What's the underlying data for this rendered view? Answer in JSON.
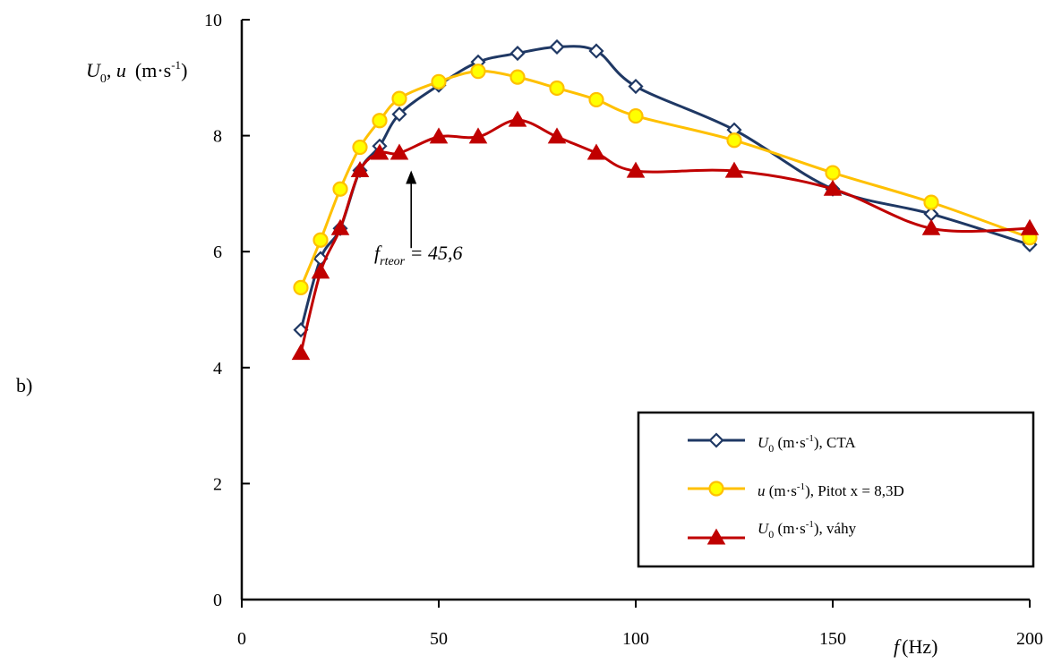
{
  "panel_label": "b)",
  "colors": {
    "cta": "#1f3864",
    "pitot_line": "#ffc000",
    "pitot_marker_fill": "#ffff00",
    "vahy": "#c00000",
    "axis": "#000000"
  },
  "ylabel": {
    "sym1": "U",
    "sub1": "0",
    "sep": ", ",
    "sym2": "u",
    "units_pre": "(m·s",
    "units_exp": "-1",
    "units_post": ")"
  },
  "xlabel": {
    "sym": "f",
    "units": "(Hz)"
  },
  "annotation": {
    "sym": "f",
    "sub": "rteor",
    "rest": " = 45,6",
    "x": 43,
    "y_tip": 7.4,
    "y_tail": 6.0
  },
  "legend": {
    "position": "lower-right",
    "entries": [
      {
        "sym": "U",
        "sub": "0",
        "pre": " (m·s",
        "exp": "-1",
        "post": "), CTA"
      },
      {
        "sym": "u",
        "sub": "",
        "pre": " (m·s",
        "exp": "-1",
        "post": "), Pitot x = 8,3D"
      },
      {
        "sym": "U",
        "sub": "0",
        "pre": " (m·s",
        "exp": "-1",
        "post": "), váhy"
      }
    ]
  },
  "chart_data": {
    "type": "line",
    "title": "",
    "xlim": [
      0,
      200
    ],
    "ylim": [
      0,
      10
    ],
    "xticks": [
      0,
      50,
      100,
      150,
      200
    ],
    "yticks": [
      0,
      2,
      4,
      6,
      8,
      10
    ],
    "grid": false,
    "series": [
      {
        "name": "U0 (m·s-1), CTA",
        "marker": "diamond-open",
        "x": [
          15,
          20,
          25,
          30,
          35,
          40,
          50,
          60,
          70,
          80,
          90,
          100,
          125,
          150,
          175,
          200
        ],
        "y": [
          4.65,
          5.88,
          6.4,
          7.4,
          7.82,
          8.37,
          8.87,
          9.27,
          9.42,
          9.53,
          9.46,
          8.85,
          8.1,
          7.08,
          6.65,
          6.12
        ]
      },
      {
        "name": "u (m·s-1), Pitot x = 8,3D",
        "marker": "circle",
        "x": [
          15,
          20,
          25,
          30,
          35,
          40,
          50,
          60,
          70,
          80,
          90,
          100,
          125,
          150,
          175,
          200
        ],
        "y": [
          5.38,
          6.2,
          7.08,
          7.8,
          8.26,
          8.64,
          8.93,
          9.11,
          9.01,
          8.82,
          8.62,
          8.34,
          7.92,
          7.36,
          6.85,
          6.24
        ]
      },
      {
        "name": "U0 (m·s-1), váhy",
        "marker": "triangle",
        "x": [
          15,
          20,
          25,
          30,
          35,
          40,
          50,
          60,
          70,
          80,
          90,
          100,
          125,
          150,
          175,
          200
        ],
        "y": [
          4.25,
          5.65,
          6.4,
          7.4,
          7.7,
          7.7,
          7.98,
          7.98,
          8.27,
          7.98,
          7.7,
          7.39,
          7.39,
          7.08,
          6.4,
          6.4
        ]
      }
    ]
  }
}
